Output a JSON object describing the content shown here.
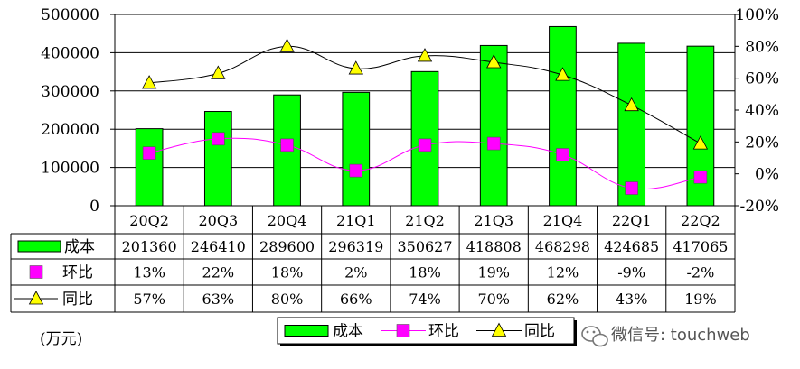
{
  "chart_data": {
    "type": "bar",
    "categories": [
      "20Q2",
      "20Q3",
      "20Q4",
      "21Q1",
      "21Q2",
      "21Q3",
      "21Q4",
      "22Q1",
      "22Q2"
    ],
    "y_left": {
      "ylim": [
        0,
        500000
      ],
      "ticks": [
        "0",
        "100000",
        "200000",
        "300000",
        "400000",
        "500000"
      ]
    },
    "y_right": {
      "ylim": [
        -20,
        100
      ],
      "ticks": [
        "-20%",
        "0%",
        "20%",
        "40%",
        "60%",
        "80%",
        "100%"
      ]
    },
    "series": [
      {
        "name": "成本",
        "kind": "bar",
        "axis": "left",
        "color": "#00ff00",
        "values": [
          201360,
          246410,
          289600,
          296319,
          350627,
          418808,
          468298,
          424685,
          417065
        ],
        "labels": [
          "201360",
          "246410",
          "289600",
          "296319",
          "350627",
          "418808",
          "468298",
          "424685",
          "417065"
        ]
      },
      {
        "name": "环比",
        "kind": "line",
        "axis": "right",
        "color": "#ff00ff",
        "marker": "square",
        "values": [
          13,
          22,
          18,
          2,
          18,
          19,
          12,
          -9,
          -2
        ],
        "labels": [
          "13%",
          "22%",
          "18%",
          "2%",
          "18%",
          "19%",
          "12%",
          "-9%",
          "-2%"
        ]
      },
      {
        "name": "同比",
        "kind": "line",
        "axis": "right",
        "color": "#000000",
        "marker": "triangle",
        "marker_fill": "#ffff00",
        "values": [
          57,
          63,
          80,
          66,
          74,
          70,
          62,
          43,
          19
        ],
        "labels": [
          "57%",
          "63%",
          "80%",
          "66%",
          "74%",
          "70%",
          "62%",
          "43%",
          "19%"
        ]
      }
    ],
    "legend": {
      "position": "bottom",
      "labels": [
        "成本",
        "环比",
        "同比"
      ]
    },
    "grid": true,
    "unit_label": "(万元)"
  },
  "watermark": "微信号: touchweb"
}
